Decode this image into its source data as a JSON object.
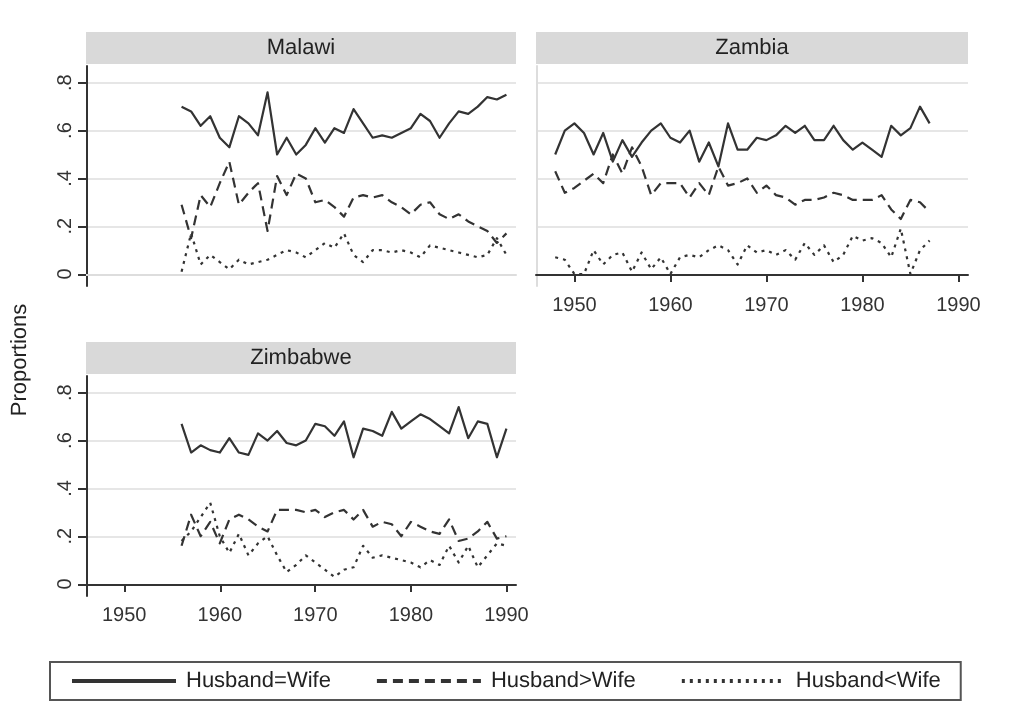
{
  "chart_data": [
    {
      "type": "line",
      "title": "Malawi",
      "xlim": [
        1946,
        1991
      ],
      "ylim": [
        -0.05,
        0.87
      ],
      "yticks": [
        {
          "value": 0,
          "label": "0"
        },
        {
          "value": 0.2,
          "label": ".2"
        },
        {
          "value": 0.4,
          "label": ".4"
        },
        {
          "value": 0.6,
          "label": ".6"
        },
        {
          "value": 0.8,
          "label": ".8"
        }
      ],
      "tick_labels": "y",
      "grid": "y",
      "x": [
        1956,
        1957,
        1958,
        1959,
        1960,
        1961,
        1962,
        1963,
        1964,
        1965,
        1966,
        1967,
        1968,
        1969,
        1970,
        1971,
        1972,
        1973,
        1974,
        1975,
        1976,
        1977,
        1978,
        1979,
        1980,
        1981,
        1982,
        1983,
        1984,
        1985,
        1986,
        1987,
        1988,
        1989,
        1990
      ],
      "series": [
        {
          "color": "#333333",
          "line_style": "solid",
          "values": [
            0.7,
            0.68,
            0.62,
            0.66,
            0.57,
            0.53,
            0.66,
            0.63,
            0.58,
            0.76,
            0.5,
            0.57,
            0.5,
            0.54,
            0.61,
            0.55,
            0.61,
            0.59,
            0.69,
            0.63,
            0.57,
            0.58,
            0.57,
            0.59,
            0.61,
            0.67,
            0.64,
            0.57,
            0.63,
            0.68,
            0.67,
            0.7,
            0.74,
            0.73,
            0.75
          ]
        },
        {
          "color": "#333333",
          "line_style": "dashed",
          "values": [
            0.29,
            0.15,
            0.33,
            0.28,
            0.38,
            0.47,
            0.29,
            0.34,
            0.38,
            0.18,
            0.41,
            0.33,
            0.42,
            0.4,
            0.3,
            0.31,
            0.28,
            0.24,
            0.32,
            0.33,
            0.32,
            0.33,
            0.3,
            0.28,
            0.25,
            0.29,
            0.3,
            0.25,
            0.23,
            0.25,
            0.22,
            0.2,
            0.18,
            0.13,
            0.17
          ]
        },
        {
          "color": "#333333",
          "line_style": "dotted",
          "values": [
            0.01,
            0.17,
            0.04,
            0.08,
            0.05,
            0.02,
            0.06,
            0.04,
            0.05,
            0.06,
            0.08,
            0.1,
            0.09,
            0.07,
            0.1,
            0.13,
            0.11,
            0.17,
            0.08,
            0.05,
            0.1,
            0.1,
            0.09,
            0.1,
            0.09,
            0.07,
            0.12,
            0.11,
            0.1,
            0.09,
            0.08,
            0.07,
            0.08,
            0.15,
            0.08
          ]
        }
      ]
    },
    {
      "type": "line",
      "title": "Zambia",
      "xlim": [
        1946,
        1991
      ],
      "ylim": [
        -0.05,
        0.87
      ],
      "yticks": [
        {
          "value": 0,
          "label": null
        },
        {
          "value": 0.2,
          "label": null
        },
        {
          "value": 0.4,
          "label": null
        },
        {
          "value": 0.6,
          "label": null
        },
        {
          "value": 0.8,
          "label": null
        }
      ],
      "xticks": [
        1950,
        1960,
        1970,
        1980,
        1990
      ],
      "tick_labels": "x",
      "grid": "y",
      "x": [
        1948,
        1949,
        1950,
        1951,
        1952,
        1953,
        1954,
        1955,
        1956,
        1957,
        1958,
        1959,
        1960,
        1961,
        1962,
        1963,
        1964,
        1965,
        1966,
        1967,
        1968,
        1969,
        1970,
        1971,
        1972,
        1973,
        1974,
        1975,
        1976,
        1977,
        1978,
        1979,
        1980,
        1981,
        1982,
        1983,
        1984,
        1985,
        1986,
        1987
      ],
      "series": [
        {
          "color": "#333333",
          "line_style": "solid",
          "values": [
            0.5,
            0.6,
            0.63,
            0.59,
            0.5,
            0.59,
            0.47,
            0.56,
            0.49,
            0.55,
            0.6,
            0.63,
            0.57,
            0.55,
            0.6,
            0.47,
            0.55,
            0.45,
            0.63,
            0.52,
            0.52,
            0.57,
            0.56,
            0.58,
            0.62,
            0.59,
            0.62,
            0.56,
            0.56,
            0.62,
            0.56,
            0.52,
            0.55,
            0.52,
            0.49,
            0.62,
            0.58,
            0.61,
            0.7,
            0.63
          ]
        },
        {
          "color": "#333333",
          "line_style": "dashed",
          "values": [
            0.43,
            0.34,
            0.36,
            0.39,
            0.42,
            0.38,
            0.5,
            0.42,
            0.53,
            0.45,
            0.33,
            0.38,
            0.38,
            0.38,
            0.32,
            0.38,
            0.33,
            0.45,
            0.37,
            0.38,
            0.4,
            0.34,
            0.37,
            0.33,
            0.32,
            0.29,
            0.31,
            0.31,
            0.32,
            0.34,
            0.33,
            0.31,
            0.31,
            0.31,
            0.33,
            0.27,
            0.23,
            0.31,
            0.3,
            0.26
          ]
        },
        {
          "color": "#333333",
          "line_style": "dotted",
          "values": [
            0.07,
            0.06,
            0.0,
            0.0,
            0.1,
            0.04,
            0.08,
            0.09,
            0.01,
            0.09,
            0.02,
            0.07,
            0.0,
            0.07,
            0.08,
            0.07,
            0.1,
            0.12,
            0.1,
            0.04,
            0.12,
            0.09,
            0.1,
            0.08,
            0.1,
            0.06,
            0.13,
            0.08,
            0.12,
            0.05,
            0.08,
            0.16,
            0.14,
            0.15,
            0.13,
            0.07,
            0.19,
            0.0,
            0.1,
            0.14
          ]
        }
      ]
    },
    {
      "type": "line",
      "title": "Zimbabwe",
      "ylabel": "Proportions",
      "legend": "bottom",
      "xlim": [
        1946,
        1991
      ],
      "ylim": [
        -0.05,
        0.87
      ],
      "yticks": [
        {
          "value": 0,
          "label": "0"
        },
        {
          "value": 0.2,
          "label": ".2"
        },
        {
          "value": 0.4,
          "label": ".4"
        },
        {
          "value": 0.6,
          "label": ".6"
        },
        {
          "value": 0.8,
          "label": ".8"
        }
      ],
      "xticks": [
        1950,
        1960,
        1970,
        1980,
        1990
      ],
      "grid": "y",
      "x": [
        1956,
        1957,
        1958,
        1959,
        1960,
        1961,
        1962,
        1963,
        1964,
        1965,
        1966,
        1967,
        1968,
        1969,
        1970,
        1971,
        1972,
        1973,
        1974,
        1975,
        1976,
        1977,
        1978,
        1979,
        1980,
        1981,
        1982,
        1983,
        1984,
        1985,
        1986,
        1987,
        1988,
        1989,
        1990
      ],
      "series": [
        {
          "name": "Husband=Wife",
          "color": "#333333",
          "line_style": "solid",
          "values": [
            0.67,
            0.55,
            0.58,
            0.56,
            0.55,
            0.61,
            0.55,
            0.54,
            0.63,
            0.6,
            0.64,
            0.59,
            0.58,
            0.6,
            0.67,
            0.66,
            0.62,
            0.68,
            0.53,
            0.65,
            0.64,
            0.62,
            0.72,
            0.65,
            0.68,
            0.71,
            0.69,
            0.66,
            0.63,
            0.74,
            0.61,
            0.68,
            0.67,
            0.53,
            0.65
          ]
        },
        {
          "name": "Husband>Wife",
          "color": "#333333",
          "line_style": "dashed",
          "values": [
            0.16,
            0.29,
            0.2,
            0.26,
            0.17,
            0.27,
            0.29,
            0.27,
            0.24,
            0.22,
            0.31,
            0.31,
            0.31,
            0.3,
            0.31,
            0.28,
            0.3,
            0.31,
            0.27,
            0.31,
            0.24,
            0.26,
            0.25,
            0.2,
            0.26,
            0.24,
            0.22,
            0.21,
            0.27,
            0.18,
            0.19,
            0.22,
            0.26,
            0.19,
            0.2
          ]
        },
        {
          "name": "Husband<Wife",
          "color": "#333333",
          "line_style": "dotted",
          "values": [
            0.18,
            0.22,
            0.28,
            0.34,
            0.2,
            0.13,
            0.21,
            0.12,
            0.17,
            0.2,
            0.12,
            0.05,
            0.08,
            0.12,
            0.09,
            0.06,
            0.03,
            0.06,
            0.07,
            0.16,
            0.11,
            0.12,
            0.11,
            0.1,
            0.09,
            0.07,
            0.1,
            0.08,
            0.16,
            0.09,
            0.16,
            0.07,
            0.12,
            0.17,
            0.16
          ]
        }
      ]
    }
  ]
}
